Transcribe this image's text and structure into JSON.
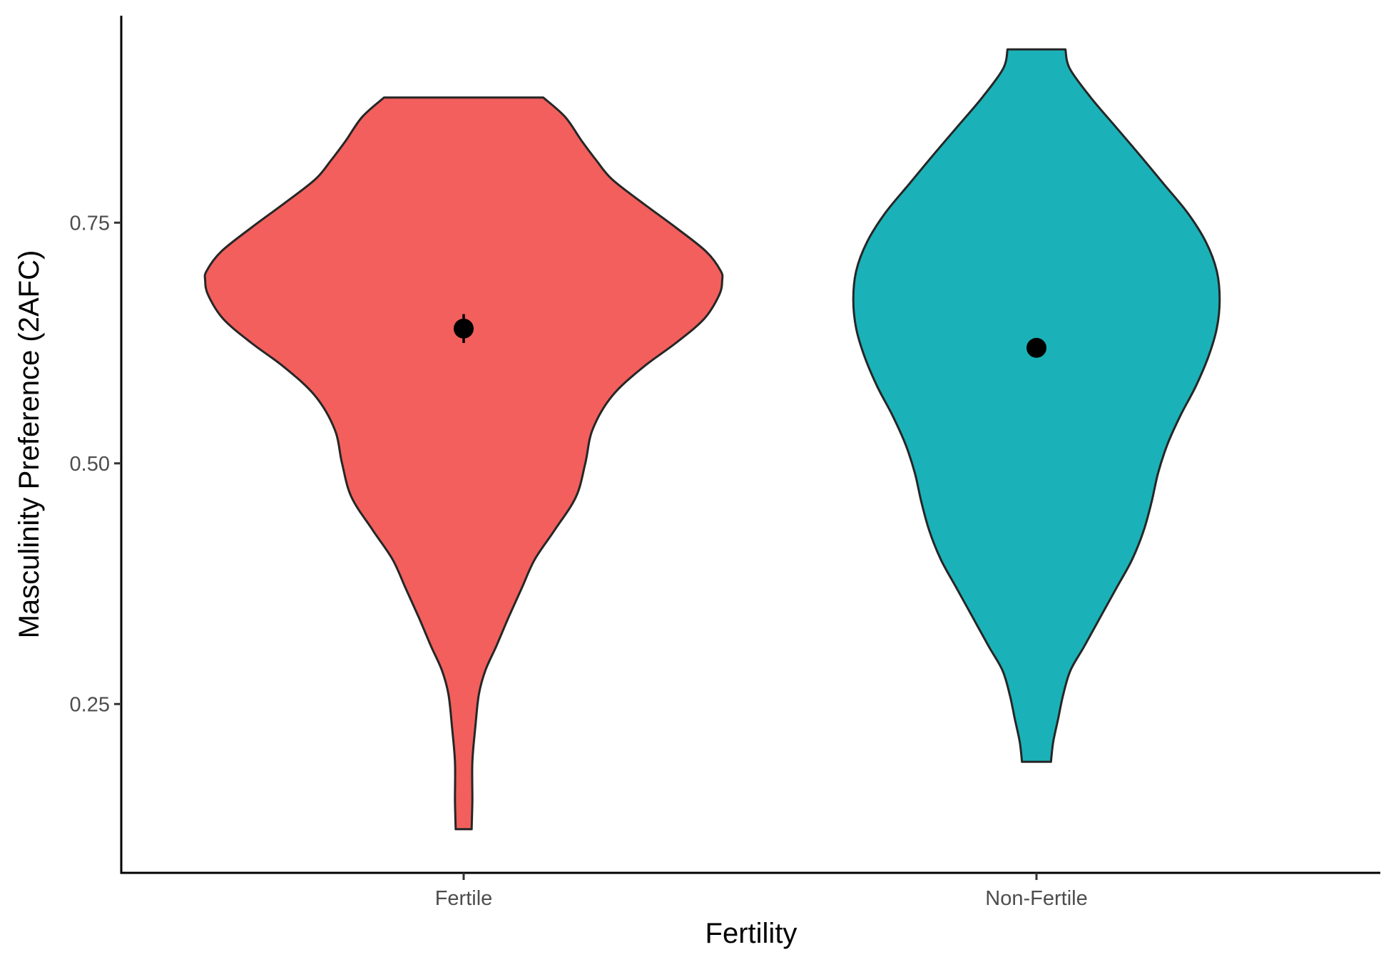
{
  "chart_data": {
    "type": "violin",
    "xlabel": "Fertility",
    "ylabel": "Masculinity Preference (2AFC)",
    "categories": [
      "Fertile",
      "Non-Fertile"
    ],
    "ylim": [
      0.08,
      0.97
    ],
    "yticks": [
      0.25,
      0.5,
      0.75
    ],
    "ytick_labels": [
      "0.25",
      "0.50",
      "0.75"
    ],
    "grid": false,
    "legend": "none",
    "series": [
      {
        "category": "Fertile",
        "color": "#F25F5C",
        "mean": 0.64,
        "error_bar": [
          0.625,
          0.655
        ],
        "range": [
          0.12,
          0.88
        ],
        "density_profile": [
          [
            0.12,
            0.011
          ],
          [
            0.15,
            0.012
          ],
          [
            0.19,
            0.012
          ],
          [
            0.225,
            0.016
          ],
          [
            0.26,
            0.021
          ],
          [
            0.285,
            0.03
          ],
          [
            0.31,
            0.045
          ],
          [
            0.34,
            0.062
          ],
          [
            0.37,
            0.08
          ],
          [
            0.4,
            0.098
          ],
          [
            0.43,
            0.125
          ],
          [
            0.465,
            0.155
          ],
          [
            0.5,
            0.168
          ],
          [
            0.535,
            0.178
          ],
          [
            0.57,
            0.205
          ],
          [
            0.6,
            0.248
          ],
          [
            0.625,
            0.293
          ],
          [
            0.65,
            0.332
          ],
          [
            0.675,
            0.353
          ],
          [
            0.69,
            0.357
          ],
          [
            0.7,
            0.355
          ],
          [
            0.72,
            0.335
          ],
          [
            0.745,
            0.293
          ],
          [
            0.77,
            0.248
          ],
          [
            0.795,
            0.205
          ],
          [
            0.815,
            0.183
          ],
          [
            0.835,
            0.163
          ],
          [
            0.86,
            0.14
          ],
          [
            0.88,
            0.11
          ]
        ]
      },
      {
        "category": "Non-Fertile",
        "color": "#1AB2B8",
        "mean": 0.62,
        "error_bar": [
          0.61,
          0.63
        ],
        "range": [
          0.19,
          0.93
        ],
        "density_profile": [
          [
            0.19,
            0.02
          ],
          [
            0.21,
            0.023
          ],
          [
            0.235,
            0.03
          ],
          [
            0.26,
            0.037
          ],
          [
            0.285,
            0.047
          ],
          [
            0.31,
            0.066
          ],
          [
            0.34,
            0.088
          ],
          [
            0.37,
            0.11
          ],
          [
            0.4,
            0.132
          ],
          [
            0.43,
            0.148
          ],
          [
            0.46,
            0.159
          ],
          [
            0.49,
            0.168
          ],
          [
            0.52,
            0.181
          ],
          [
            0.55,
            0.199
          ],
          [
            0.58,
            0.22
          ],
          [
            0.61,
            0.237
          ],
          [
            0.64,
            0.249
          ],
          [
            0.67,
            0.253
          ],
          [
            0.7,
            0.249
          ],
          [
            0.73,
            0.234
          ],
          [
            0.76,
            0.209
          ],
          [
            0.79,
            0.176
          ],
          [
            0.82,
            0.143
          ],
          [
            0.85,
            0.109
          ],
          [
            0.88,
            0.075
          ],
          [
            0.91,
            0.046
          ],
          [
            0.93,
            0.04
          ]
        ]
      }
    ]
  }
}
